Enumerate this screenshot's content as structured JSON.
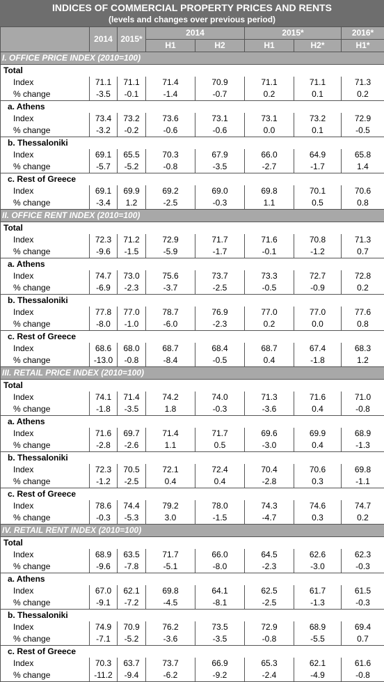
{
  "title": "INDICES OF COMMERCIAL PROPERTY PRICES AND RENTS",
  "subtitle": "(levels and changes over previous period)",
  "header": {
    "y2014": "2014",
    "y2015": "2015*",
    "g2014": "2014",
    "g2015": "2015*",
    "g2016": "2016*",
    "h1": "H1",
    "h2": "H2",
    "h1b": "H1",
    "h2s": "H2*",
    "h1s": "H1*"
  },
  "sections": [
    {
      "title": "I. OFFICE PRICE INDEX (2010=100)",
      "groups": [
        {
          "name": "Total",
          "index": [
            "71.1",
            "71.1",
            "71.4",
            "70.9",
            "71.1",
            "71.1",
            "71.3"
          ],
          "change": [
            "-3.5",
            "-0.1",
            "-1.4",
            "-0.7",
            "0.2",
            "0.1",
            "0.2"
          ]
        },
        {
          "name": "a.  Athens",
          "index": [
            "73.4",
            "73.2",
            "73.6",
            "73.1",
            "73.1",
            "73.2",
            "72.9"
          ],
          "change": [
            "-3.2",
            "-0.2",
            "-0.6",
            "-0.6",
            "0.0",
            "0.1",
            "-0.5"
          ]
        },
        {
          "name": "b.  Thessaloniki",
          "index": [
            "69.1",
            "65.5",
            "70.3",
            "67.9",
            "66.0",
            "64.9",
            "65.8"
          ],
          "change": [
            "-5.7",
            "-5.2",
            "-0.8",
            "-3.5",
            "-2.7",
            "-1.7",
            "1.4"
          ]
        },
        {
          "name": "c. Rest of Greece",
          "index": [
            "69.1",
            "69.9",
            "69.2",
            "69.0",
            "69.8",
            "70.1",
            "70.6"
          ],
          "change": [
            "-3.4",
            "1.2",
            "-2.5",
            "-0.3",
            "1.1",
            "0.5",
            "0.8"
          ]
        }
      ]
    },
    {
      "title": "II. OFFICE RENT INDEX (2010=100)",
      "groups": [
        {
          "name": "Total",
          "index": [
            "72.3",
            "71.2",
            "72.9",
            "71.7",
            "71.6",
            "70.8",
            "71.3"
          ],
          "change": [
            "-9.6",
            "-1.5",
            "-5.9",
            "-1.7",
            "-0.1",
            "-1.2",
            "0.7"
          ]
        },
        {
          "name": "a.  Athens",
          "index": [
            "74.7",
            "73.0",
            "75.6",
            "73.7",
            "73.3",
            "72.7",
            "72.8"
          ],
          "change": [
            "-6.9",
            "-2.3",
            "-3.7",
            "-2.5",
            "-0.5",
            "-0.9",
            "0.2"
          ]
        },
        {
          "name": "b.  Thessaloniki",
          "index": [
            "77.8",
            "77.0",
            "78.7",
            "76.9",
            "77.0",
            "77.0",
            "77.6"
          ],
          "change": [
            "-8.0",
            "-1.0",
            "-6.0",
            "-2.3",
            "0.2",
            "0.0",
            "0.8"
          ]
        },
        {
          "name": "c. Rest of Greece",
          "index": [
            "68.6",
            "68.0",
            "68.7",
            "68.4",
            "68.7",
            "67.4",
            "68.3"
          ],
          "change": [
            "-13.0",
            "-0.8",
            "-8.4",
            "-0.5",
            "0.4",
            "-1.8",
            "1.2"
          ]
        }
      ]
    },
    {
      "title": "III. RETAIL PRICE INDEX (2010=100)",
      "groups": [
        {
          "name": "Total",
          "index": [
            "74.1",
            "71.4",
            "74.2",
            "74.0",
            "71.3",
            "71.6",
            "71.0"
          ],
          "change": [
            "-1.8",
            "-3.5",
            "1.8",
            "-0.3",
            "-3.6",
            "0.4",
            "-0.8"
          ]
        },
        {
          "name": "a.  Athens",
          "index": [
            "71.6",
            "69.7",
            "71.4",
            "71.7",
            "69.6",
            "69.9",
            "68.9"
          ],
          "change": [
            "-2.8",
            "-2.6",
            "1.1",
            "0.5",
            "-3.0",
            "0.4",
            "-1.3"
          ]
        },
        {
          "name": "b.  Thessaloniki",
          "index": [
            "72.3",
            "70.5",
            "72.1",
            "72.4",
            "70.4",
            "70.6",
            "69.8"
          ],
          "change": [
            "-1.2",
            "-2.5",
            "0.4",
            "0.4",
            "-2.8",
            "0.3",
            "-1.1"
          ]
        },
        {
          "name": "c. Rest of Greece",
          "index": [
            "78.6",
            "74.4",
            "79.2",
            "78.0",
            "74.3",
            "74.6",
            "74.7"
          ],
          "change": [
            "-0.3",
            "-5.3",
            "3.0",
            "-1.5",
            "-4.7",
            "0.3",
            "0.2"
          ]
        }
      ]
    },
    {
      "title": "IV. RETAIL RENT INDEX (2010=100)",
      "groups": [
        {
          "name": "Total",
          "index": [
            "68.9",
            "63.5",
            "71.7",
            "66.0",
            "64.5",
            "62.6",
            "62.3"
          ],
          "change": [
            "-9.6",
            "-7.8",
            "-5.1",
            "-8.0",
            "-2.3",
            "-3.0",
            "-0.3"
          ]
        },
        {
          "name": "a.  Athens",
          "index": [
            "67.0",
            "62.1",
            "69.8",
            "64.1",
            "62.5",
            "61.7",
            "61.5"
          ],
          "change": [
            "-9.1",
            "-7.2",
            "-4.5",
            "-8.1",
            "-2.5",
            "-1.3",
            "-0.3"
          ]
        },
        {
          "name": "b.  Thessaloniki",
          "index": [
            "74.9",
            "70.9",
            "76.2",
            "73.5",
            "72.9",
            "68.9",
            "69.4"
          ],
          "change": [
            "-7.1",
            "-5.2",
            "-3.6",
            "-3.5",
            "-0.8",
            "-5.5",
            "0.7"
          ]
        },
        {
          "name": "c. Rest of Greece",
          "index": [
            "70.3",
            "63.7",
            "73.7",
            "66.9",
            "65.3",
            "62.1",
            "61.6"
          ],
          "change": [
            "-11.2",
            "-9.4",
            "-6.2",
            "-9.2",
            "-2.4",
            "-4.9",
            "-0.8"
          ]
        }
      ]
    }
  ],
  "labels": {
    "index": "Index",
    "change": "% change"
  }
}
